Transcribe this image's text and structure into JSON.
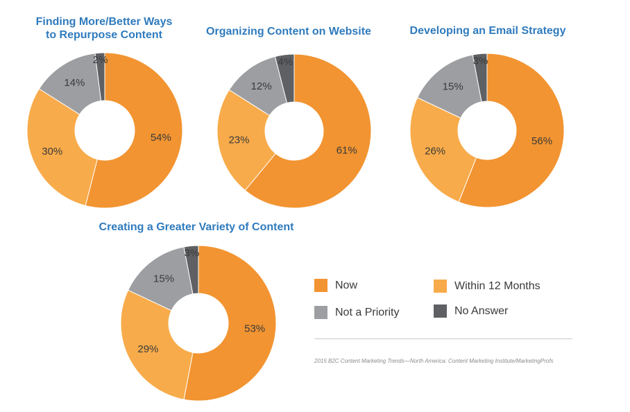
{
  "colors": {
    "Now": "#f29431",
    "Within 12 Months": "#f8ab4a",
    "Not a Priority": "#9d9ea1",
    "No Answer": "#5f6063"
  },
  "legend": [
    {
      "label": "Now",
      "color": "#f29431"
    },
    {
      "label": "Within 12 Months",
      "color": "#f8ab4a"
    },
    {
      "label": "Not a Priority",
      "color": "#9d9ea1"
    },
    {
      "label": "No Answer",
      "color": "#5f6063"
    }
  ],
  "chart_data": [
    {
      "type": "pie",
      "title": "Finding More/Better Ways\nto Repurpose Content",
      "categories": [
        "Now",
        "Within 12 Months",
        "Not a Priority",
        "No Answer"
      ],
      "values": [
        54,
        30,
        14,
        2
      ],
      "labels": [
        "54%",
        "30%",
        "14%",
        "2%"
      ]
    },
    {
      "type": "pie",
      "title": "Organizing Content on Website",
      "categories": [
        "Now",
        "Within 12 Months",
        "Not a Priority",
        "No Answer"
      ],
      "values": [
        61,
        23,
        12,
        4
      ],
      "labels": [
        "61%",
        "23%",
        "12%",
        "4%"
      ]
    },
    {
      "type": "pie",
      "title": "Developing an Email Strategy",
      "categories": [
        "Now",
        "Within 12 Months",
        "Not a Priority",
        "No Answer"
      ],
      "values": [
        56,
        26,
        15,
        3
      ],
      "labels": [
        "56%",
        "26%",
        "15%",
        "3%"
      ]
    },
    {
      "type": "pie",
      "title": "Creating a Greater Variety of Content",
      "categories": [
        "Now",
        "Within 12 Months",
        "Not a Priority",
        "No Answer"
      ],
      "values": [
        53,
        29,
        15,
        3
      ],
      "labels": [
        "53%",
        "29%",
        "15%",
        "3%"
      ]
    }
  ],
  "source": "2015 B2C Content Marketing Trends—North America: Content Marketing Institute/MarketingProfs"
}
